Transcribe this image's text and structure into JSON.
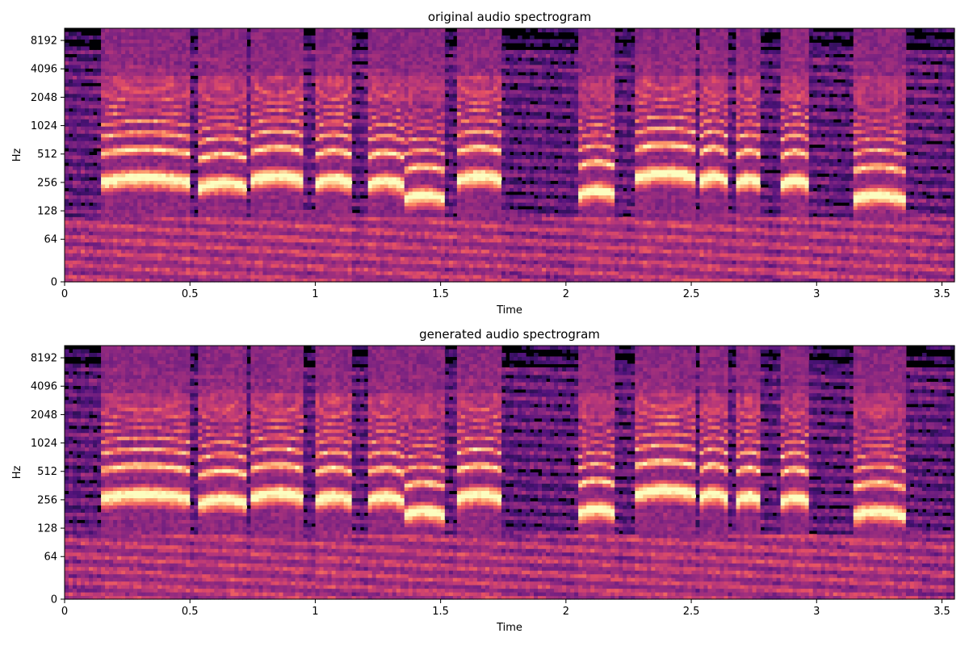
{
  "chart_data": [
    {
      "type": "heatmap",
      "subtype": "spectrogram",
      "title": "original audio spectrogram",
      "xlabel": "Time",
      "ylabel": "Hz",
      "xlim": [
        0,
        3.55
      ],
      "x_ticks": [
        0,
        0.5,
        1,
        1.5,
        2,
        2.5,
        3,
        3.5
      ],
      "x_tick_labels": [
        "0",
        "0.5",
        "1",
        "1.5",
        "2",
        "2.5",
        "3",
        "3.5"
      ],
      "y_scale": "log2 (symlog near 0)",
      "y_ticks": [
        0,
        64,
        128,
        256,
        512,
        1024,
        2048,
        4096,
        8192
      ],
      "y_tick_labels": [
        "0",
        "64",
        "128",
        "256",
        "512",
        "1024",
        "2048",
        "4096",
        "8192"
      ],
      "colormap": "magma",
      "colors": {
        "background": "#000004",
        "low": "#3b0f70",
        "mid": "#b5367a",
        "high": "#fcfdbf"
      },
      "voiced_segments": [
        {
          "start": 0.14,
          "end": 0.5,
          "f0": 260
        },
        {
          "start": 0.54,
          "end": 0.73,
          "f0": 230
        },
        {
          "start": 0.74,
          "end": 0.96,
          "f0": 270
        },
        {
          "start": 1.0,
          "end": 1.15,
          "f0": 250
        },
        {
          "start": 1.21,
          "end": 1.35,
          "f0": 240
        },
        {
          "start": 1.35,
          "end": 1.52,
          "f0": 170
        },
        {
          "start": 1.56,
          "end": 1.75,
          "f0": 270
        },
        {
          "start": 2.05,
          "end": 2.2,
          "f0": 190
        },
        {
          "start": 2.28,
          "end": 2.52,
          "f0": 290
        },
        {
          "start": 2.54,
          "end": 2.64,
          "f0": 270
        },
        {
          "start": 2.68,
          "end": 2.78,
          "f0": 250
        },
        {
          "start": 2.86,
          "end": 2.97,
          "f0": 245
        },
        {
          "start": 3.14,
          "end": 3.35,
          "f0": 170
        }
      ]
    },
    {
      "type": "heatmap",
      "subtype": "spectrogram",
      "title": "generated audio spectrogram",
      "xlabel": "Time",
      "ylabel": "Hz",
      "xlim": [
        0,
        3.55
      ],
      "x_ticks": [
        0,
        0.5,
        1,
        1.5,
        2,
        2.5,
        3,
        3.5
      ],
      "x_tick_labels": [
        "0",
        "0.5",
        "1",
        "1.5",
        "2",
        "2.5",
        "3",
        "3.5"
      ],
      "y_scale": "log2 (symlog near 0)",
      "y_ticks": [
        0,
        64,
        128,
        256,
        512,
        1024,
        2048,
        4096,
        8192
      ],
      "y_tick_labels": [
        "0",
        "64",
        "128",
        "256",
        "512",
        "1024",
        "2048",
        "4096",
        "8192"
      ],
      "colormap": "magma",
      "colors": {
        "background": "#000004",
        "low": "#3b0f70",
        "mid": "#b5367a",
        "high": "#fcfdbf"
      },
      "voiced_segments": [
        {
          "start": 0.14,
          "end": 0.5,
          "f0": 265
        },
        {
          "start": 0.54,
          "end": 0.73,
          "f0": 235
        },
        {
          "start": 0.74,
          "end": 0.96,
          "f0": 270
        },
        {
          "start": 1.0,
          "end": 1.15,
          "f0": 250
        },
        {
          "start": 1.21,
          "end": 1.35,
          "f0": 250
        },
        {
          "start": 1.35,
          "end": 1.52,
          "f0": 175
        },
        {
          "start": 1.56,
          "end": 1.75,
          "f0": 265
        },
        {
          "start": 2.05,
          "end": 2.2,
          "f0": 185
        },
        {
          "start": 2.28,
          "end": 2.52,
          "f0": 295
        },
        {
          "start": 2.54,
          "end": 2.64,
          "f0": 270
        },
        {
          "start": 2.68,
          "end": 2.78,
          "f0": 250
        },
        {
          "start": 2.86,
          "end": 2.97,
          "f0": 245
        },
        {
          "start": 3.14,
          "end": 3.35,
          "f0": 175
        }
      ]
    }
  ]
}
